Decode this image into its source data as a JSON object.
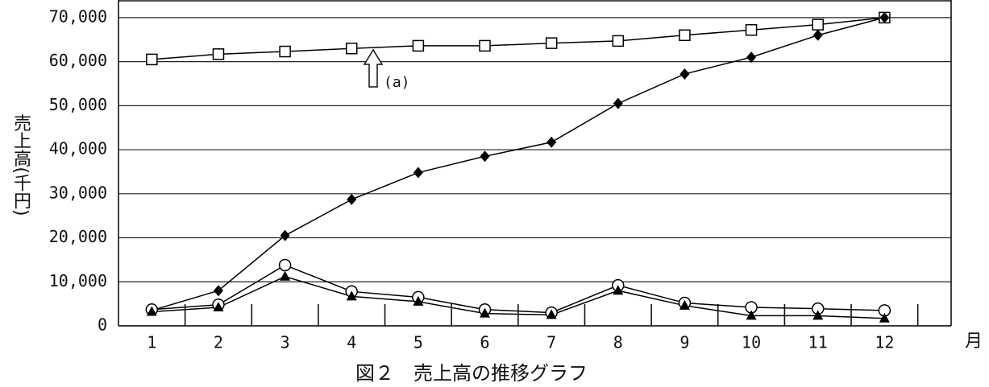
{
  "chart_data": {
    "type": "line",
    "y_label": "売上高(千円)",
    "x_label": "月",
    "caption": "図２　売上高の推移グラフ",
    "annotation": "(a)",
    "categories": [
      "1",
      "2",
      "3",
      "4",
      "5",
      "6",
      "7",
      "8",
      "9",
      "10",
      "11",
      "12"
    ],
    "series": [
      {
        "marker": "square",
        "color": "#000000",
        "values": [
          60500,
          61700,
          62300,
          63000,
          63600,
          63600,
          64200,
          64700,
          66000,
          67200,
          68400,
          70000
        ]
      },
      {
        "marker": "diamond",
        "color": "#000000",
        "values": [
          3500,
          8000,
          20500,
          28700,
          34800,
          38500,
          41700,
          50500,
          57200,
          61000,
          66000,
          70000
        ]
      },
      {
        "marker": "circle",
        "color": "#000000",
        "values": [
          3700,
          4800,
          13800,
          7800,
          6500,
          3700,
          3000,
          9200,
          5200,
          4200,
          3900,
          3500
        ]
      },
      {
        "marker": "triangle",
        "color": "#000000",
        "values": [
          3200,
          4200,
          11200,
          6700,
          5500,
          2800,
          2500,
          8000,
          4600,
          2300,
          2300,
          1700
        ]
      }
    ],
    "ylim": [
      0,
      74000
    ],
    "yticks": [
      0,
      {
        "value": 10000,
        "label": "10,000"
      },
      {
        "value": 20000,
        "label": "20,000"
      },
      {
        "value": 30000,
        "label": "30,000"
      },
      {
        "value": 40000,
        "label": "40,000"
      },
      {
        "value": 50000,
        "label": "50,000"
      },
      {
        "value": 60000,
        "label": "60,000"
      },
      {
        "value": 70000,
        "label": "70,000"
      }
    ],
    "grid": true
  }
}
